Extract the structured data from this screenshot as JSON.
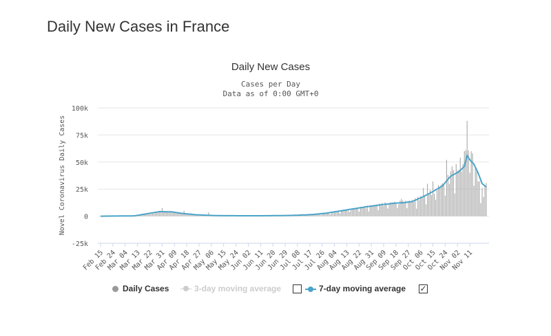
{
  "page_title": "Daily New Cases in France",
  "chart_data": {
    "type": "bar",
    "title": "Daily New Cases",
    "subtitle_line1": "Cases per Day",
    "subtitle_line2": "Data as of 0:00 GMT+0",
    "ylabel": "Novel Coronavirus Daily Cases",
    "ylim": [
      -25000,
      100000
    ],
    "yticks": [
      {
        "value": -25000,
        "label": "-25k"
      },
      {
        "value": 0,
        "label": "0"
      },
      {
        "value": 25000,
        "label": "25k"
      },
      {
        "value": 50000,
        "label": "50k"
      },
      {
        "value": 75000,
        "label": "75k"
      },
      {
        "value": 100000,
        "label": "100k"
      }
    ],
    "xtick_labels": [
      "Feb 15",
      "Feb 24",
      "Mar 04",
      "Mar 13",
      "Mar 22",
      "Mar 31",
      "Apr 09",
      "Apr 18",
      "Apr 27",
      "May 06",
      "May 15",
      "May 24",
      "Jun 02",
      "Jun 11",
      "Jun 20",
      "Jun 29",
      "Jul 08",
      "Jul 17",
      "Jul 26",
      "Aug 04",
      "Aug 13",
      "Aug 22",
      "Aug 31",
      "Sep 09",
      "Sep 18",
      "Sep 27",
      "Oct 06",
      "Oct 15",
      "Oct 24",
      "Nov 02",
      "Nov 11"
    ],
    "grid": true,
    "legend": [
      {
        "label": "Daily Cases",
        "color": "#999999",
        "checked": null
      },
      {
        "label": "3-day moving average",
        "color": "#cccccc",
        "checked": false
      },
      {
        "label": "7-day moving average",
        "color": "#4aa3c8",
        "checked": true
      }
    ],
    "daily_cases_anchors": [
      {
        "day": 0,
        "value": 0
      },
      {
        "day": 20,
        "value": 100
      },
      {
        "day": 30,
        "value": 800
      },
      {
        "day": 38,
        "value": 2500
      },
      {
        "day": 45,
        "value": 4500
      },
      {
        "day": 55,
        "value": 3500
      },
      {
        "day": 65,
        "value": 1500
      },
      {
        "day": 75,
        "value": 800
      },
      {
        "day": 90,
        "value": 400
      },
      {
        "day": 110,
        "value": 400
      },
      {
        "day": 130,
        "value": 600
      },
      {
        "day": 150,
        "value": 1200
      },
      {
        "day": 160,
        "value": 2000
      },
      {
        "day": 170,
        "value": 3500
      },
      {
        "day": 180,
        "value": 5500
      },
      {
        "day": 190,
        "value": 7500
      },
      {
        "day": 200,
        "value": 9500
      },
      {
        "day": 210,
        "value": 11500
      },
      {
        "day": 220,
        "value": 12500
      },
      {
        "day": 228,
        "value": 13500
      },
      {
        "day": 235,
        "value": 17000
      },
      {
        "day": 242,
        "value": 22000
      },
      {
        "day": 250,
        "value": 28000
      },
      {
        "day": 256,
        "value": 36000
      },
      {
        "day": 262,
        "value": 41000
      },
      {
        "day": 266,
        "value": 43000
      },
      {
        "day": 268,
        "value": 50000
      },
      {
        "day": 270,
        "value": 56000
      },
      {
        "day": 272,
        "value": 51000
      },
      {
        "day": 274,
        "value": 44000
      },
      {
        "day": 277,
        "value": 34000
      },
      {
        "day": 280,
        "value": 28000
      },
      {
        "day": 282,
        "value": 27000
      }
    ],
    "daily_cases_spikes": [
      {
        "day": 45,
        "value": 7500
      },
      {
        "day": 61,
        "value": 5000
      },
      {
        "day": 79,
        "value": 3500
      },
      {
        "day": 220,
        "value": 16000
      },
      {
        "day": 236,
        "value": 26000
      },
      {
        "day": 239,
        "value": 30000
      },
      {
        "day": 243,
        "value": 32000
      },
      {
        "day": 253,
        "value": 52000
      },
      {
        "day": 257,
        "value": 46000
      },
      {
        "day": 260,
        "value": 48000
      },
      {
        "day": 263,
        "value": 54000
      },
      {
        "day": 266,
        "value": 60000
      },
      {
        "day": 267,
        "value": 61000
      },
      {
        "day": 268,
        "value": 88000
      },
      {
        "day": 270,
        "value": 40000
      },
      {
        "day": 272,
        "value": 58000
      },
      {
        "day": 274,
        "value": 45000
      },
      {
        "day": 276,
        "value": 32000
      },
      {
        "day": 278,
        "value": 12000
      },
      {
        "day": 281,
        "value": 28000
      }
    ],
    "moving_avg_7day": [
      {
        "day": 0,
        "value": 0
      },
      {
        "day": 25,
        "value": 300
      },
      {
        "day": 35,
        "value": 2500
      },
      {
        "day": 43,
        "value": 4200
      },
      {
        "day": 52,
        "value": 4000
      },
      {
        "day": 60,
        "value": 2500
      },
      {
        "day": 70,
        "value": 1300
      },
      {
        "day": 85,
        "value": 500
      },
      {
        "day": 100,
        "value": 400
      },
      {
        "day": 120,
        "value": 400
      },
      {
        "day": 140,
        "value": 700
      },
      {
        "day": 155,
        "value": 1500
      },
      {
        "day": 165,
        "value": 2800
      },
      {
        "day": 175,
        "value": 4800
      },
      {
        "day": 185,
        "value": 6800
      },
      {
        "day": 195,
        "value": 8800
      },
      {
        "day": 205,
        "value": 10500
      },
      {
        "day": 215,
        "value": 12000
      },
      {
        "day": 222,
        "value": 12500
      },
      {
        "day": 228,
        "value": 13500
      },
      {
        "day": 235,
        "value": 17500
      },
      {
        "day": 242,
        "value": 22000
      },
      {
        "day": 250,
        "value": 28000
      },
      {
        "day": 256,
        "value": 37000
      },
      {
        "day": 262,
        "value": 41000
      },
      {
        "day": 266,
        "value": 46000
      },
      {
        "day": 268,
        "value": 56000
      },
      {
        "day": 270,
        "value": 52000
      },
      {
        "day": 273,
        "value": 48000
      },
      {
        "day": 276,
        "value": 40000
      },
      {
        "day": 279,
        "value": 30000
      },
      {
        "day": 282,
        "value": 27000
      }
    ],
    "day_count": 283
  }
}
